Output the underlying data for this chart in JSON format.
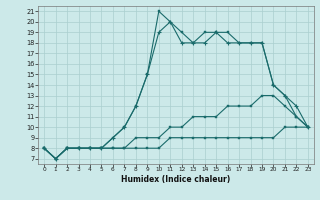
{
  "xlabel": "Humidex (Indice chaleur)",
  "bg_color": "#cce9e9",
  "grid_color": "#aacfcf",
  "line_color": "#1a6b6b",
  "xlim": [
    -0.5,
    23.5
  ],
  "ylim": [
    6.5,
    21.5
  ],
  "xticks": [
    0,
    1,
    2,
    3,
    4,
    5,
    6,
    7,
    8,
    9,
    10,
    11,
    12,
    13,
    14,
    15,
    16,
    17,
    18,
    19,
    20,
    21,
    22,
    23
  ],
  "yticks": [
    7,
    8,
    9,
    10,
    11,
    12,
    13,
    14,
    15,
    16,
    17,
    18,
    19,
    20,
    21
  ],
  "line1_x": [
    0,
    1,
    2,
    3,
    4,
    5,
    6,
    7,
    8,
    9,
    10,
    11,
    12,
    13,
    14,
    15,
    16,
    17,
    18,
    19,
    20,
    21,
    22,
    23
  ],
  "line1_y": [
    8,
    7,
    8,
    8,
    8,
    8,
    8,
    8,
    8,
    8,
    8,
    9,
    9,
    9,
    9,
    9,
    9,
    9,
    9,
    9,
    9,
    10,
    10,
    10
  ],
  "line2_x": [
    0,
    1,
    2,
    3,
    4,
    5,
    6,
    7,
    8,
    9,
    10,
    11,
    12,
    13,
    14,
    15,
    16,
    17,
    18,
    19,
    20,
    21,
    22,
    23
  ],
  "line2_y": [
    8,
    7,
    8,
    8,
    8,
    8,
    8,
    8,
    9,
    9,
    9,
    10,
    10,
    11,
    11,
    11,
    12,
    12,
    12,
    13,
    13,
    12,
    11,
    10
  ],
  "line3_x": [
    0,
    1,
    2,
    3,
    4,
    5,
    6,
    7,
    8,
    9,
    10,
    11,
    12,
    13,
    14,
    15,
    16,
    17,
    18,
    19,
    20,
    21,
    22,
    23
  ],
  "line3_y": [
    8,
    7,
    8,
    8,
    8,
    8,
    9,
    10,
    12,
    15,
    19,
    20,
    18,
    18,
    18,
    19,
    18,
    18,
    18,
    18,
    14,
    13,
    12,
    10
  ],
  "line4_x": [
    0,
    1,
    2,
    3,
    4,
    5,
    6,
    7,
    8,
    9,
    10,
    11,
    12,
    13,
    14,
    15,
    16,
    17,
    18,
    19,
    20,
    21,
    22,
    23
  ],
  "line4_y": [
    8,
    7,
    8,
    8,
    8,
    8,
    9,
    10,
    12,
    15,
    21,
    20,
    19,
    18,
    19,
    19,
    19,
    18,
    18,
    18,
    14,
    13,
    11,
    10
  ]
}
